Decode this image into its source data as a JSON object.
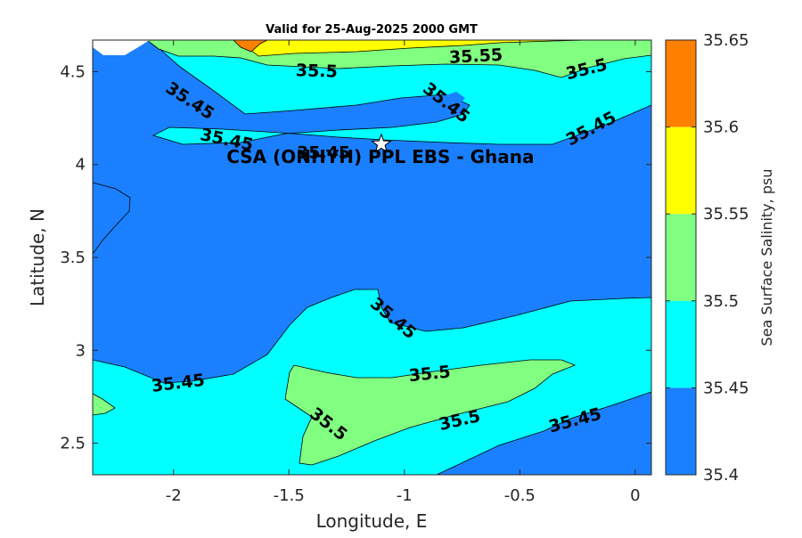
{
  "chart_data": {
    "type": "contour",
    "title": "Valid for 25-Aug-2025 2000 GMT",
    "xlabel": "Longitude, E",
    "ylabel": "Latitude, N",
    "xlim": [
      -2.35,
      0.07
    ],
    "ylim": [
      2.33,
      4.67
    ],
    "x_ticks": [
      -2,
      -1.5,
      -1,
      -0.5,
      0
    ],
    "x_tick_labels": [
      "-2",
      "-1.5",
      "-1",
      "-0.5",
      "0"
    ],
    "y_ticks": [
      2.5,
      3,
      3.5,
      4,
      4.5
    ],
    "y_tick_labels": [
      "2.5",
      "3",
      "3.5",
      "4",
      "4.5"
    ],
    "colorbar": {
      "label": "Sea Surface Salinity, psu",
      "levels": [
        35.4,
        35.45,
        35.5,
        35.55,
        35.6,
        35.65
      ],
      "tick_labels": [
        "35.4",
        "35.45",
        "35.5",
        "35.55",
        "35.6",
        "35.65"
      ],
      "colors": [
        "#1a80ff",
        "#00ffff",
        "#80ff80",
        "#ffff00",
        "#ff8000"
      ]
    },
    "contour_labels": [
      {
        "text": "35.55",
        "lon": -0.69,
        "lat": 4.58,
        "angle": -3
      },
      {
        "text": "35.5",
        "lon": -1.38,
        "lat": 4.5,
        "angle": 2
      },
      {
        "text": "35.5",
        "lon": -0.21,
        "lat": 4.51,
        "angle": -14
      },
      {
        "text": "35.45",
        "lon": -1.93,
        "lat": 4.34,
        "angle": 33
      },
      {
        "text": "35.45",
        "lon": -0.82,
        "lat": 4.33,
        "angle": 38
      },
      {
        "text": "35.45",
        "lon": -1.77,
        "lat": 4.13,
        "angle": 12
      },
      {
        "text": "35.45",
        "lon": -0.19,
        "lat": 4.19,
        "angle": -28
      },
      {
        "text": "35.45",
        "lon": -1.35,
        "lat": 4.06,
        "angle": 0
      },
      {
        "text": "35.45",
        "lon": -1.05,
        "lat": 3.17,
        "angle": 40
      },
      {
        "text": "35.45",
        "lon": -1.98,
        "lat": 2.82,
        "angle": -7
      },
      {
        "text": "35.5",
        "lon": -0.89,
        "lat": 2.87,
        "angle": -6
      },
      {
        "text": "35.5",
        "lon": -0.76,
        "lat": 2.62,
        "angle": -13
      },
      {
        "text": "35.5",
        "lon": -1.33,
        "lat": 2.6,
        "angle": 38
      },
      {
        "text": "35.45",
        "lon": -0.26,
        "lat": 2.62,
        "angle": -15
      }
    ],
    "site": {
      "name": "CSA (ONHYH) PPL EBS  - Ghana",
      "lon": -1.1,
      "lat": 4.11
    }
  }
}
